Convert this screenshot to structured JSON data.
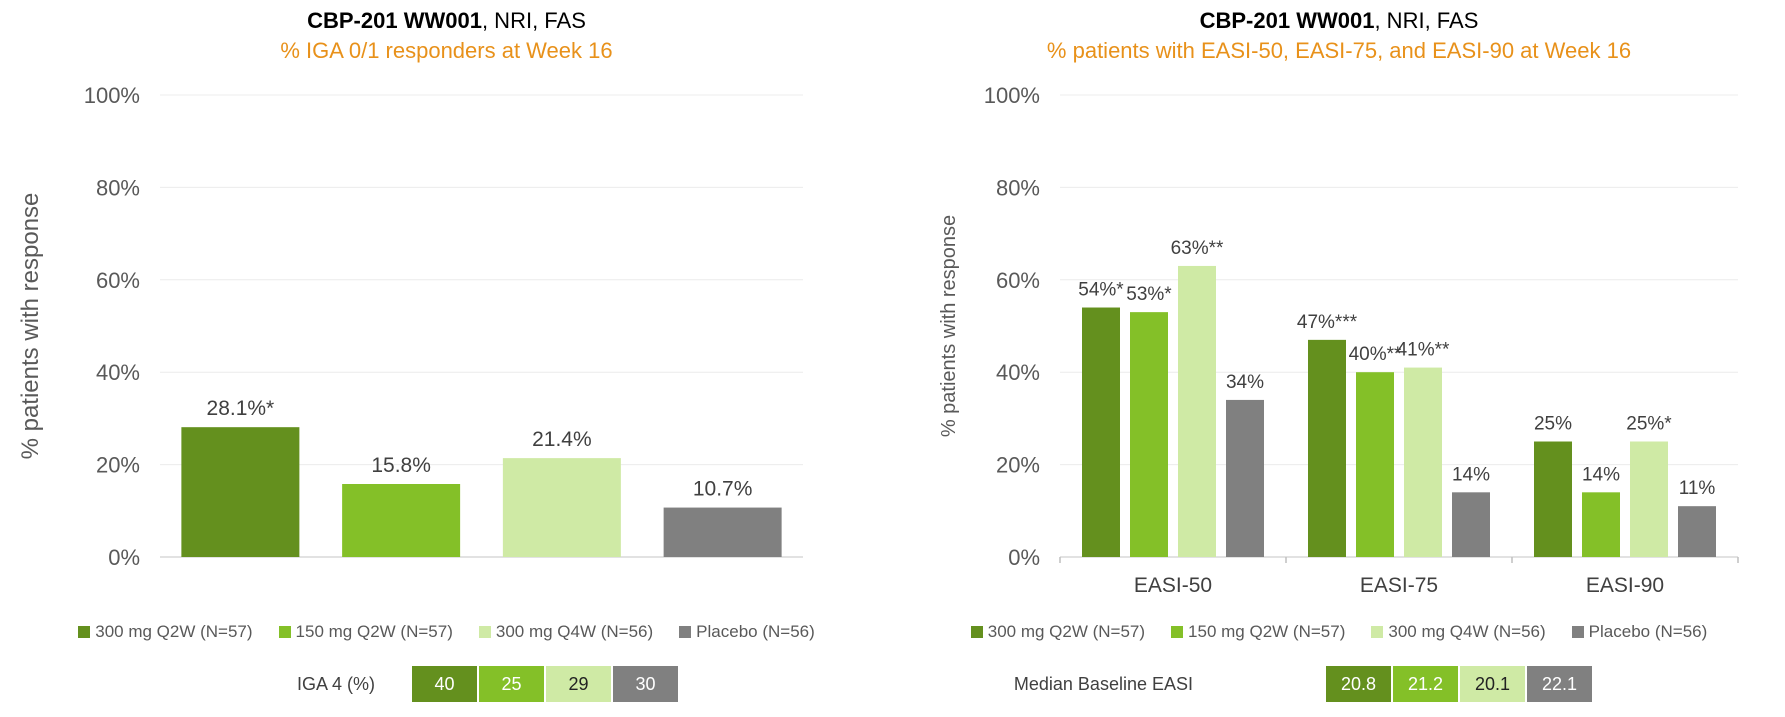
{
  "colors": {
    "dark_green": "#64901e",
    "mid_green": "#84c028",
    "light_green": "#cfeaa5",
    "gray": "#808080",
    "subtitle_orange": "#e8911a"
  },
  "left": {
    "title_bold": "CBP-201 WW001",
    "title_rest": ", NRI, FAS",
    "subtitle": "% IGA 0/1 responders at Week 16",
    "legend": [
      "300 mg Q2W (N=57)",
      "150 mg Q2W (N=57)",
      "300 mg Q4W (N=56)",
      "Placebo (N=56)"
    ],
    "baseline_label": "IGA 4 (%)",
    "baseline_values": [
      "40",
      "25",
      "29",
      "30"
    ]
  },
  "right": {
    "title_bold": "CBP-201 WW001",
    "title_rest": ", NRI, FAS",
    "subtitle": "% patients with EASI-50, EASI-75, and EASI-90 at Week 16",
    "legend": [
      "300 mg Q2W (N=57)",
      "150 mg Q2W (N=57)",
      "300 mg Q4W (N=56)",
      "Placebo (N=56)"
    ],
    "baseline_label": "Median Baseline EASI",
    "baseline_values": [
      "20.8",
      "21.2",
      "20.1",
      "22.1"
    ]
  },
  "chart_data": [
    {
      "type": "bar",
      "title": "CBP-201 WW001, NRI, FAS",
      "subtitle": "% IGA 0/1 responders at Week 16",
      "ylabel": "% patients with response",
      "ylim": [
        0,
        100
      ],
      "yticks": [
        "0%",
        "20%",
        "40%",
        "60%",
        "80%",
        "100%"
      ],
      "grid": true,
      "categories": [
        "300 mg Q2W (N=57)",
        "150 mg Q2W (N=57)",
        "300 mg Q4W (N=56)",
        "Placebo (N=56)"
      ],
      "values": [
        28.1,
        15.8,
        21.4,
        10.7
      ],
      "data_labels": [
        "28.1%*",
        "15.8%",
        "21.4%",
        "10.7%"
      ],
      "legend_position": "bottom"
    },
    {
      "type": "bar",
      "title": "CBP-201 WW001, NRI, FAS",
      "subtitle": "% patients with EASI-50, EASI-75, and EASI-90 at Week 16",
      "ylabel": "% patients with response",
      "ylim": [
        0,
        100
      ],
      "yticks": [
        "0%",
        "20%",
        "40%",
        "60%",
        "80%",
        "100%"
      ],
      "grid": true,
      "categories": [
        "EASI-50",
        "EASI-75",
        "EASI-90"
      ],
      "series": [
        {
          "name": "300 mg Q2W (N=57)",
          "values": [
            54,
            47,
            25
          ],
          "labels": [
            "54%*",
            "47%***",
            "25%"
          ]
        },
        {
          "name": "150 mg Q2W (N=57)",
          "values": [
            53,
            40,
            14
          ],
          "labels": [
            "53%*",
            "40%**",
            "14%"
          ]
        },
        {
          "name": "300 mg Q4W (N=56)",
          "values": [
            63,
            41,
            25
          ],
          "labels": [
            "63%**",
            "41%**",
            "25%*"
          ]
        },
        {
          "name": "Placebo (N=56)",
          "values": [
            34,
            14,
            11
          ],
          "labels": [
            "34%",
            "14%",
            "11%"
          ]
        }
      ],
      "legend_position": "bottom"
    }
  ]
}
